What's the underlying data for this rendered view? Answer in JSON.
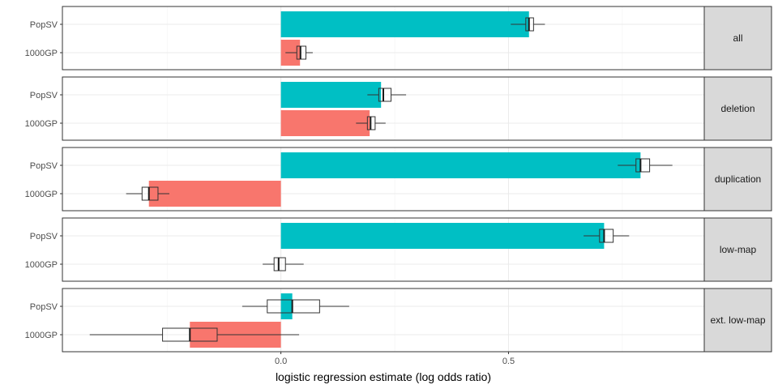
{
  "chart_data": {
    "type": "bar",
    "xlabel": "logistic regression estimate (log odds ratio)",
    "ylabel": "",
    "x_ticks": [
      0.0,
      0.5
    ],
    "x_tick_labels": [
      "0.0",
      "0.5"
    ],
    "xlim": [
      -0.48,
      0.93
    ],
    "categories": [
      "PopSV",
      "1000GP"
    ],
    "colors": {
      "PopSV": "#00BFC4",
      "1000GP": "#F8766D"
    },
    "grid": true,
    "legend": "none",
    "facets": [
      {
        "label": "all",
        "rows": [
          {
            "method": "PopSV",
            "estimate": 0.545,
            "box": {
              "whisker_low": 0.505,
              "q1": 0.538,
              "median": 0.545,
              "q3": 0.555,
              "whisker_high": 0.58
            }
          },
          {
            "method": "1000GP",
            "estimate": 0.042,
            "box": {
              "whisker_low": 0.01,
              "q1": 0.035,
              "median": 0.043,
              "q3": 0.055,
              "whisker_high": 0.07
            }
          }
        ]
      },
      {
        "label": "deletion",
        "rows": [
          {
            "method": "PopSV",
            "estimate": 0.22,
            "box": {
              "whisker_low": 0.19,
              "q1": 0.215,
              "median": 0.225,
              "q3": 0.242,
              "whisker_high": 0.275
            }
          },
          {
            "method": "1000GP",
            "estimate": 0.195,
            "box": {
              "whisker_low": 0.165,
              "q1": 0.19,
              "median": 0.197,
              "q3": 0.207,
              "whisker_high": 0.23
            }
          }
        ]
      },
      {
        "label": "duplication",
        "rows": [
          {
            "method": "PopSV",
            "estimate": 0.79,
            "box": {
              "whisker_low": 0.74,
              "q1": 0.78,
              "median": 0.79,
              "q3": 0.81,
              "whisker_high": 0.86
            }
          },
          {
            "method": "1000GP",
            "estimate": -0.29,
            "box": {
              "whisker_low": -0.34,
              "q1": -0.305,
              "median": -0.29,
              "q3": -0.27,
              "whisker_high": -0.245
            }
          }
        ]
      },
      {
        "label": "low-map",
        "rows": [
          {
            "method": "PopSV",
            "estimate": 0.71,
            "box": {
              "whisker_low": 0.665,
              "q1": 0.7,
              "median": 0.71,
              "q3": 0.73,
              "whisker_high": 0.765
            }
          },
          {
            "method": "1000GP",
            "estimate": 0.0,
            "box": {
              "whisker_low": -0.04,
              "q1": -0.015,
              "median": -0.005,
              "q3": 0.01,
              "whisker_high": 0.05
            }
          }
        ]
      },
      {
        "label": "ext. low-map",
        "rows": [
          {
            "method": "PopSV",
            "estimate": 0.025,
            "box": {
              "whisker_low": -0.085,
              "q1": -0.03,
              "median": 0.025,
              "q3": 0.085,
              "whisker_high": 0.15
            }
          },
          {
            "method": "1000GP",
            "estimate": -0.2,
            "box": {
              "whisker_low": -0.42,
              "q1": -0.26,
              "median": -0.2,
              "q3": -0.14,
              "whisker_high": 0.04
            }
          }
        ]
      }
    ]
  }
}
